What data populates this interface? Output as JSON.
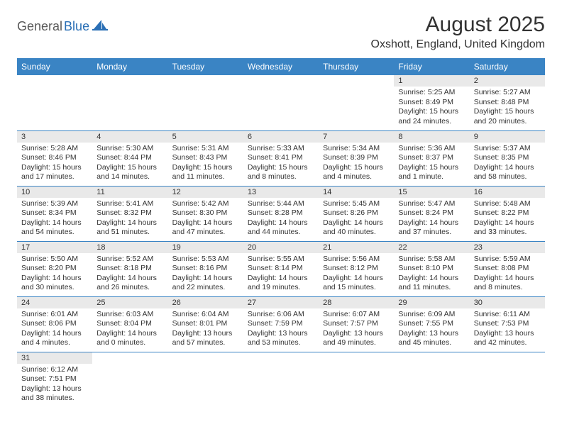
{
  "logo": {
    "part1": "General",
    "part2": "Blue"
  },
  "title": "August 2025",
  "location": "Oxshott, England, United Kingdom",
  "colors": {
    "header_bg": "#3a84c4",
    "header_text": "#ffffff",
    "daynum_bg": "#e9e9e9",
    "border": "#3a84c4",
    "logo_gray": "#5a5a5a",
    "logo_blue": "#2a6fb5"
  },
  "day_headers": [
    "Sunday",
    "Monday",
    "Tuesday",
    "Wednesday",
    "Thursday",
    "Friday",
    "Saturday"
  ],
  "weeks": [
    [
      null,
      null,
      null,
      null,
      null,
      {
        "n": "1",
        "sr": "Sunrise: 5:25 AM",
        "ss": "Sunset: 8:49 PM",
        "dl": "Daylight: 15 hours and 24 minutes."
      },
      {
        "n": "2",
        "sr": "Sunrise: 5:27 AM",
        "ss": "Sunset: 8:48 PM",
        "dl": "Daylight: 15 hours and 20 minutes."
      }
    ],
    [
      {
        "n": "3",
        "sr": "Sunrise: 5:28 AM",
        "ss": "Sunset: 8:46 PM",
        "dl": "Daylight: 15 hours and 17 minutes."
      },
      {
        "n": "4",
        "sr": "Sunrise: 5:30 AM",
        "ss": "Sunset: 8:44 PM",
        "dl": "Daylight: 15 hours and 14 minutes."
      },
      {
        "n": "5",
        "sr": "Sunrise: 5:31 AM",
        "ss": "Sunset: 8:43 PM",
        "dl": "Daylight: 15 hours and 11 minutes."
      },
      {
        "n": "6",
        "sr": "Sunrise: 5:33 AM",
        "ss": "Sunset: 8:41 PM",
        "dl": "Daylight: 15 hours and 8 minutes."
      },
      {
        "n": "7",
        "sr": "Sunrise: 5:34 AM",
        "ss": "Sunset: 8:39 PM",
        "dl": "Daylight: 15 hours and 4 minutes."
      },
      {
        "n": "8",
        "sr": "Sunrise: 5:36 AM",
        "ss": "Sunset: 8:37 PM",
        "dl": "Daylight: 15 hours and 1 minute."
      },
      {
        "n": "9",
        "sr": "Sunrise: 5:37 AM",
        "ss": "Sunset: 8:35 PM",
        "dl": "Daylight: 14 hours and 58 minutes."
      }
    ],
    [
      {
        "n": "10",
        "sr": "Sunrise: 5:39 AM",
        "ss": "Sunset: 8:34 PM",
        "dl": "Daylight: 14 hours and 54 minutes."
      },
      {
        "n": "11",
        "sr": "Sunrise: 5:41 AM",
        "ss": "Sunset: 8:32 PM",
        "dl": "Daylight: 14 hours and 51 minutes."
      },
      {
        "n": "12",
        "sr": "Sunrise: 5:42 AM",
        "ss": "Sunset: 8:30 PM",
        "dl": "Daylight: 14 hours and 47 minutes."
      },
      {
        "n": "13",
        "sr": "Sunrise: 5:44 AM",
        "ss": "Sunset: 8:28 PM",
        "dl": "Daylight: 14 hours and 44 minutes."
      },
      {
        "n": "14",
        "sr": "Sunrise: 5:45 AM",
        "ss": "Sunset: 8:26 PM",
        "dl": "Daylight: 14 hours and 40 minutes."
      },
      {
        "n": "15",
        "sr": "Sunrise: 5:47 AM",
        "ss": "Sunset: 8:24 PM",
        "dl": "Daylight: 14 hours and 37 minutes."
      },
      {
        "n": "16",
        "sr": "Sunrise: 5:48 AM",
        "ss": "Sunset: 8:22 PM",
        "dl": "Daylight: 14 hours and 33 minutes."
      }
    ],
    [
      {
        "n": "17",
        "sr": "Sunrise: 5:50 AM",
        "ss": "Sunset: 8:20 PM",
        "dl": "Daylight: 14 hours and 30 minutes."
      },
      {
        "n": "18",
        "sr": "Sunrise: 5:52 AM",
        "ss": "Sunset: 8:18 PM",
        "dl": "Daylight: 14 hours and 26 minutes."
      },
      {
        "n": "19",
        "sr": "Sunrise: 5:53 AM",
        "ss": "Sunset: 8:16 PM",
        "dl": "Daylight: 14 hours and 22 minutes."
      },
      {
        "n": "20",
        "sr": "Sunrise: 5:55 AM",
        "ss": "Sunset: 8:14 PM",
        "dl": "Daylight: 14 hours and 19 minutes."
      },
      {
        "n": "21",
        "sr": "Sunrise: 5:56 AM",
        "ss": "Sunset: 8:12 PM",
        "dl": "Daylight: 14 hours and 15 minutes."
      },
      {
        "n": "22",
        "sr": "Sunrise: 5:58 AM",
        "ss": "Sunset: 8:10 PM",
        "dl": "Daylight: 14 hours and 11 minutes."
      },
      {
        "n": "23",
        "sr": "Sunrise: 5:59 AM",
        "ss": "Sunset: 8:08 PM",
        "dl": "Daylight: 14 hours and 8 minutes."
      }
    ],
    [
      {
        "n": "24",
        "sr": "Sunrise: 6:01 AM",
        "ss": "Sunset: 8:06 PM",
        "dl": "Daylight: 14 hours and 4 minutes."
      },
      {
        "n": "25",
        "sr": "Sunrise: 6:03 AM",
        "ss": "Sunset: 8:04 PM",
        "dl": "Daylight: 14 hours and 0 minutes."
      },
      {
        "n": "26",
        "sr": "Sunrise: 6:04 AM",
        "ss": "Sunset: 8:01 PM",
        "dl": "Daylight: 13 hours and 57 minutes."
      },
      {
        "n": "27",
        "sr": "Sunrise: 6:06 AM",
        "ss": "Sunset: 7:59 PM",
        "dl": "Daylight: 13 hours and 53 minutes."
      },
      {
        "n": "28",
        "sr": "Sunrise: 6:07 AM",
        "ss": "Sunset: 7:57 PM",
        "dl": "Daylight: 13 hours and 49 minutes."
      },
      {
        "n": "29",
        "sr": "Sunrise: 6:09 AM",
        "ss": "Sunset: 7:55 PM",
        "dl": "Daylight: 13 hours and 45 minutes."
      },
      {
        "n": "30",
        "sr": "Sunrise: 6:11 AM",
        "ss": "Sunset: 7:53 PM",
        "dl": "Daylight: 13 hours and 42 minutes."
      }
    ],
    [
      {
        "n": "31",
        "sr": "Sunrise: 6:12 AM",
        "ss": "Sunset: 7:51 PM",
        "dl": "Daylight: 13 hours and 38 minutes."
      },
      null,
      null,
      null,
      null,
      null,
      null
    ]
  ]
}
